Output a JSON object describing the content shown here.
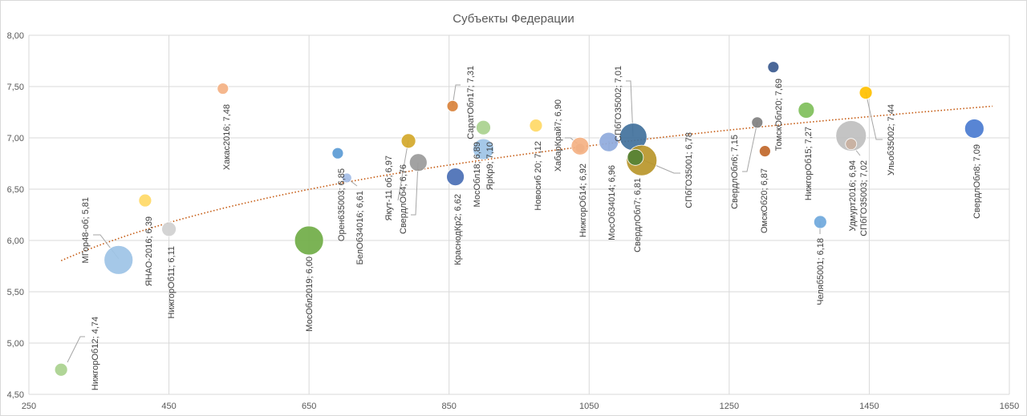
{
  "chart_data": {
    "type": "bubble",
    "title": "Субъекты Федерации",
    "xlabel": "",
    "ylabel": "",
    "xlim": [
      250,
      1650
    ],
    "ylim": [
      4.5,
      8.0
    ],
    "xticks": [
      "250",
      "450",
      "650",
      "850",
      "1050",
      "1250",
      "1450",
      "1650"
    ],
    "yticks": [
      "4,50",
      "5,00",
      "5,50",
      "6,00",
      "6,50",
      "7,00",
      "7,50",
      "8,00"
    ],
    "grid": true,
    "trendline": {
      "type": "logarithmic",
      "a": 0.776,
      "b": 0.8835,
      "color": "#c55a11"
    },
    "points": [
      {
        "label": "НижгорОб12; 4,74",
        "x": 296,
        "y": 4.74,
        "size": 8,
        "color": "#a9d18e"
      },
      {
        "label": "МГор48-об; 5,81",
        "x": 378,
        "y": 5.81,
        "size": 18,
        "color": "#9dc3e6"
      },
      {
        "label": "ЯНАО-2016; 6,39",
        "x": 416,
        "y": 6.39,
        "size": 8,
        "color": "#ffd966"
      },
      {
        "label": "НижгорОб11; 6,11",
        "x": 450,
        "y": 6.11,
        "size": 9,
        "color": "#d0d0d0"
      },
      {
        "label": "Хакас2016; 7,48",
        "x": 527,
        "y": 7.48,
        "size": 7,
        "color": "#f4b183"
      },
      {
        "label": "МосОбл2019; 6,00",
        "x": 650,
        "y": 6.0,
        "size": 18,
        "color": "#70ad47"
      },
      {
        "label": "Орен635003; 6,85",
        "x": 691,
        "y": 6.85,
        "size": 7,
        "color": "#5b9bd5"
      },
      {
        "label": "БелОб34016; 6,61",
        "x": 704,
        "y": 6.61,
        "size": 6,
        "color": "#a4bde6"
      },
      {
        "label": "Якут-11 об; 6,97",
        "x": 792,
        "y": 6.97,
        "size": 9,
        "color": "#d4a82a"
      },
      {
        "label": "СвердлОб4; 6,76",
        "x": 806,
        "y": 6.76,
        "size": 11,
        "color": "#9a9a9a"
      },
      {
        "label": "КраснодКр2; 6,62",
        "x": 859,
        "y": 6.62,
        "size": 11,
        "color": "#4a6fb5"
      },
      {
        "label": "СаратОбл17; 7,31",
        "x": 855,
        "y": 7.31,
        "size": 7,
        "color": "#d9823b"
      },
      {
        "label": "ЯрКр9; 7,10",
        "x": 899,
        "y": 7.1,
        "size": 9,
        "color": "#a9d18e"
      },
      {
        "label": "МосОбл18; 6,89",
        "x": 899,
        "y": 6.89,
        "size": 13,
        "color": "#9dc3e6"
      },
      {
        "label": "Новосиб 20; 7,12",
        "x": 974,
        "y": 7.12,
        "size": 8,
        "color": "#ffd966"
      },
      {
        "label": "ХабарКрай7; 6,90",
        "x": 1037,
        "y": 6.9,
        "size": 6,
        "color": "#c9b0a0"
      },
      {
        "label": "НижгорОб14; 6,92",
        "x": 1037,
        "y": 6.92,
        "size": 11,
        "color": "#f4b183"
      },
      {
        "label": "МосОб34014; 6,96",
        "x": 1078,
        "y": 6.96,
        "size": 12,
        "color": "#8faadc"
      },
      {
        "label": "СПбГОЗ5002; 7,01",
        "x": 1113,
        "y": 7.01,
        "size": 17,
        "color": "#41719c"
      },
      {
        "label": "СПбГОЗ5001; 6,78",
        "x": 1125,
        "y": 6.78,
        "size": 19,
        "color": "#b8962a"
      },
      {
        "label": "СвердлОбл7; 6,81",
        "x": 1116,
        "y": 6.81,
        "size": 10,
        "color": "#548235"
      },
      {
        "label": "СвердлОбл6; 7,15",
        "x": 1290,
        "y": 7.15,
        "size": 7,
        "color": "#808080"
      },
      {
        "label": "ОмскОб20; 6,87",
        "x": 1301,
        "y": 6.87,
        "size": 7,
        "color": "#c0672a"
      },
      {
        "label": "ТомскОбл20; 7,69",
        "x": 1313,
        "y": 7.69,
        "size": 7,
        "color": "#3b5a8f"
      },
      {
        "label": "НижгорОб15; 7,27",
        "x": 1360,
        "y": 7.27,
        "size": 10,
        "color": "#7fbf5a"
      },
      {
        "label": "Челяб5001; 6,18",
        "x": 1380,
        "y": 6.18,
        "size": 8,
        "color": "#6fa8dc"
      },
      {
        "label": "СПбГОЗ5003; 7,02",
        "x": 1424,
        "y": 7.02,
        "size": 19,
        "color": "#bfbfbf"
      },
      {
        "label": "Удмурт2016; 6,94",
        "x": 1424,
        "y": 6.94,
        "size": 7,
        "color": "#c9b0a0"
      },
      {
        "label": "Ульоб35002; 7,44",
        "x": 1445,
        "y": 7.44,
        "size": 8,
        "color": "#ffc000"
      },
      {
        "label": "СвердлОбл8; 7,09",
        "x": 1600,
        "y": 7.09,
        "size": 12,
        "color": "#4a7bd0"
      }
    ]
  }
}
